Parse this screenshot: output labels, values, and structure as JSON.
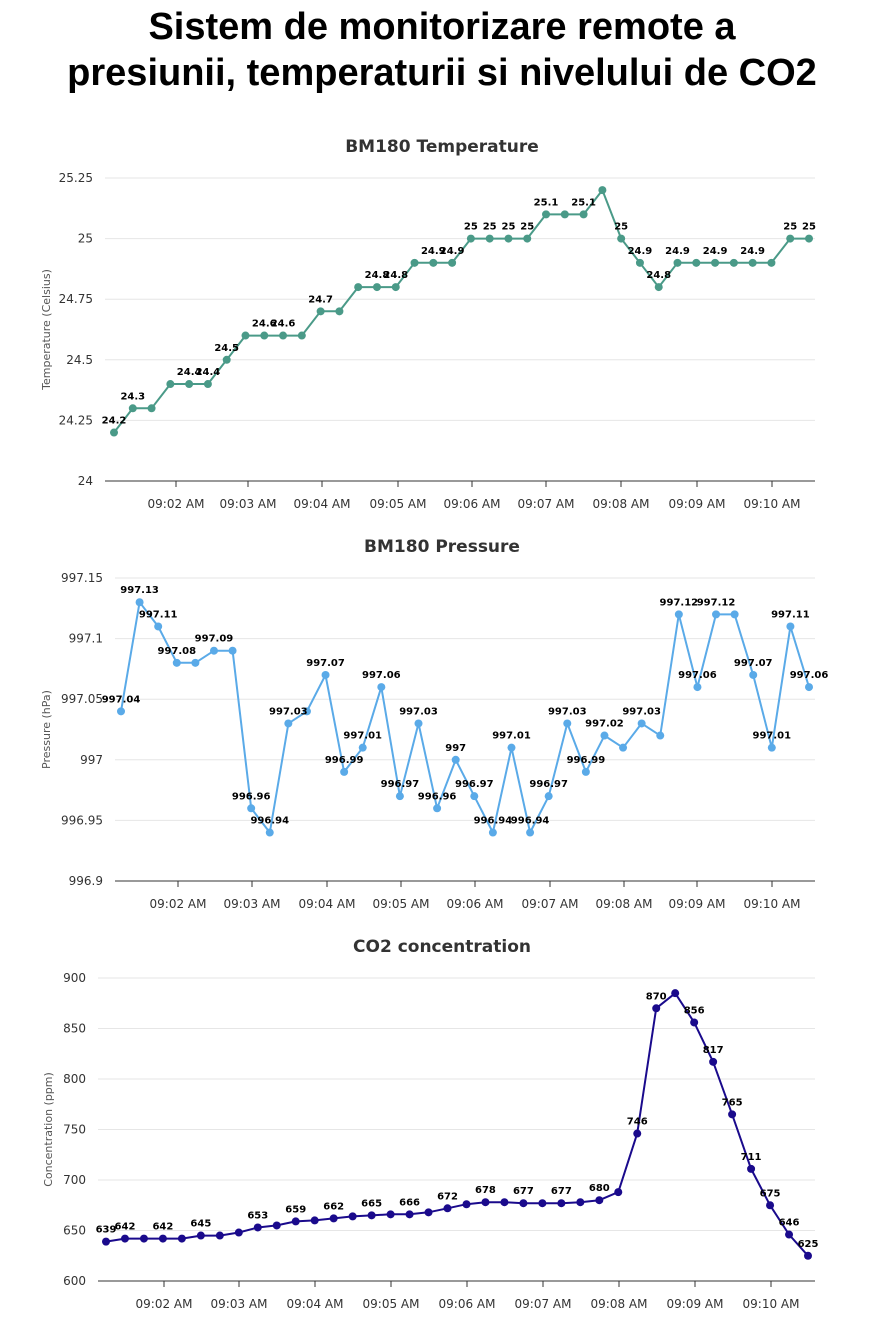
{
  "page": {
    "title_line1": "Sistem de monitorizare remote a",
    "title_line2": "presiunii, temperaturii si nivelului de CO2"
  },
  "chart_data": [
    {
      "type": "line",
      "title": "BM180 Temperature",
      "ylabel": "Temperature (Celsius)",
      "xlabel": "",
      "color": "#4a9a88",
      "ylim": [
        24,
        25.25
      ],
      "yticks": [
        24,
        24.25,
        24.5,
        24.75,
        25,
        25.25
      ],
      "ytick_labels": [
        "24",
        "24.25",
        "24.5",
        "24.75",
        "25",
        "25.25"
      ],
      "xticks": [
        "09:02 AM",
        "09:03 AM",
        "09:04 AM",
        "09:05 AM",
        "09:06 AM",
        "09:07 AM",
        "09:08 AM",
        "09:09 AM",
        "09:10 AM"
      ],
      "series": [
        {
          "name": "Temperature",
          "values": [
            24.2,
            24.3,
            24.3,
            24.4,
            24.4,
            24.4,
            24.5,
            24.6,
            24.6,
            24.6,
            24.6,
            24.7,
            24.7,
            24.8,
            24.8,
            24.8,
            24.9,
            24.9,
            24.9,
            25,
            25,
            25,
            25,
            25.1,
            25.1,
            25.1,
            25.2,
            25,
            24.9,
            24.8,
            24.9,
            24.9,
            24.9,
            24.9,
            24.9,
            24.9,
            25,
            25
          ],
          "data_labels": [
            "24.2",
            "24.3",
            "",
            "",
            "24.4",
            "24.4",
            "24.5",
            "",
            "24.6",
            "24.6",
            "",
            "24.7",
            "",
            "",
            "24.8",
            "24.8",
            "",
            "24.9",
            "24.9",
            "25",
            "25",
            "25",
            "25",
            "25.1",
            "",
            "25.1",
            "",
            "25",
            "24.9",
            "24.8",
            "24.9",
            "",
            "24.9",
            "",
            "24.9",
            "",
            "25",
            "25"
          ]
        }
      ]
    },
    {
      "type": "line",
      "title": "BM180 Pressure",
      "ylabel": "Pressure (hPa)",
      "xlabel": "",
      "color": "#5aaae8",
      "ylim": [
        996.9,
        997.15
      ],
      "yticks": [
        996.9,
        996.95,
        997,
        997.05,
        997.1,
        997.15
      ],
      "ytick_labels": [
        "996.9",
        "996.95",
        "997",
        "997.05",
        "997.1",
        "997.15"
      ],
      "xticks": [
        "09:02 AM",
        "09:03 AM",
        "09:04 AM",
        "09:05 AM",
        "09:06 AM",
        "09:07 AM",
        "09:08 AM",
        "09:09 AM",
        "09:10 AM"
      ],
      "series": [
        {
          "name": "Pressure",
          "values": [
            997.04,
            997.13,
            997.11,
            997.08,
            997.08,
            997.09,
            997.09,
            996.96,
            996.94,
            997.03,
            997.04,
            997.07,
            996.99,
            997.01,
            997.06,
            996.97,
            997.03,
            996.96,
            997.0,
            996.97,
            996.94,
            997.01,
            996.94,
            996.97,
            997.03,
            996.99,
            997.02,
            997.01,
            997.03,
            997.02,
            997.12,
            997.06,
            997.12,
            997.12,
            997.07,
            997.01,
            997.11,
            997.06
          ],
          "data_labels": [
            "997.04",
            "997.13",
            "997.11",
            "997.08",
            "",
            "997.09",
            "",
            "996.96",
            "996.94",
            "997.03",
            "",
            "997.07",
            "996.99",
            "997.01",
            "997.06",
            "996.97",
            "997.03",
            "996.96",
            "997",
            "996.97",
            "996.94",
            "997.01",
            "996.94",
            "996.97",
            "997.03",
            "996.99",
            "997.02",
            "",
            "997.03",
            "",
            "997.12",
            "997.06",
            "997.12",
            "",
            "997.07",
            "997.01",
            "997.11",
            "997.06"
          ]
        }
      ]
    },
    {
      "type": "line",
      "title": "CO2 concentration",
      "ylabel": "Concentration (ppm)",
      "xlabel": "",
      "color": "#1a0a8c",
      "ylim": [
        600,
        900
      ],
      "yticks": [
        600,
        650,
        700,
        750,
        800,
        850,
        900
      ],
      "ytick_labels": [
        "600",
        "650",
        "700",
        "750",
        "800",
        "850",
        "900"
      ],
      "xticks": [
        "09:02 AM",
        "09:03 AM",
        "09:04 AM",
        "09:05 AM",
        "09:06 AM",
        "09:07 AM",
        "09:08 AM",
        "09:09 AM",
        "09:10 AM"
      ],
      "series": [
        {
          "name": "CO2",
          "values": [
            639,
            642,
            642,
            642,
            642,
            645,
            645,
            648,
            653,
            655,
            659,
            660,
            662,
            664,
            665,
            666,
            666,
            668,
            672,
            676,
            678,
            678,
            677,
            677,
            677,
            678,
            680,
            688,
            746,
            870,
            885,
            856,
            817,
            765,
            711,
            675,
            646,
            625
          ],
          "data_labels": [
            "639",
            "642",
            "",
            "642",
            "",
            "645",
            "",
            "",
            "653",
            "",
            "659",
            "",
            "662",
            "",
            "665",
            "",
            "666",
            "",
            "672",
            "",
            "678",
            "",
            "677",
            "",
            "677",
            "",
            "680",
            "",
            "746",
            "870",
            "",
            "856",
            "817",
            "765",
            "711",
            "675",
            "646",
            "625"
          ]
        }
      ]
    }
  ]
}
